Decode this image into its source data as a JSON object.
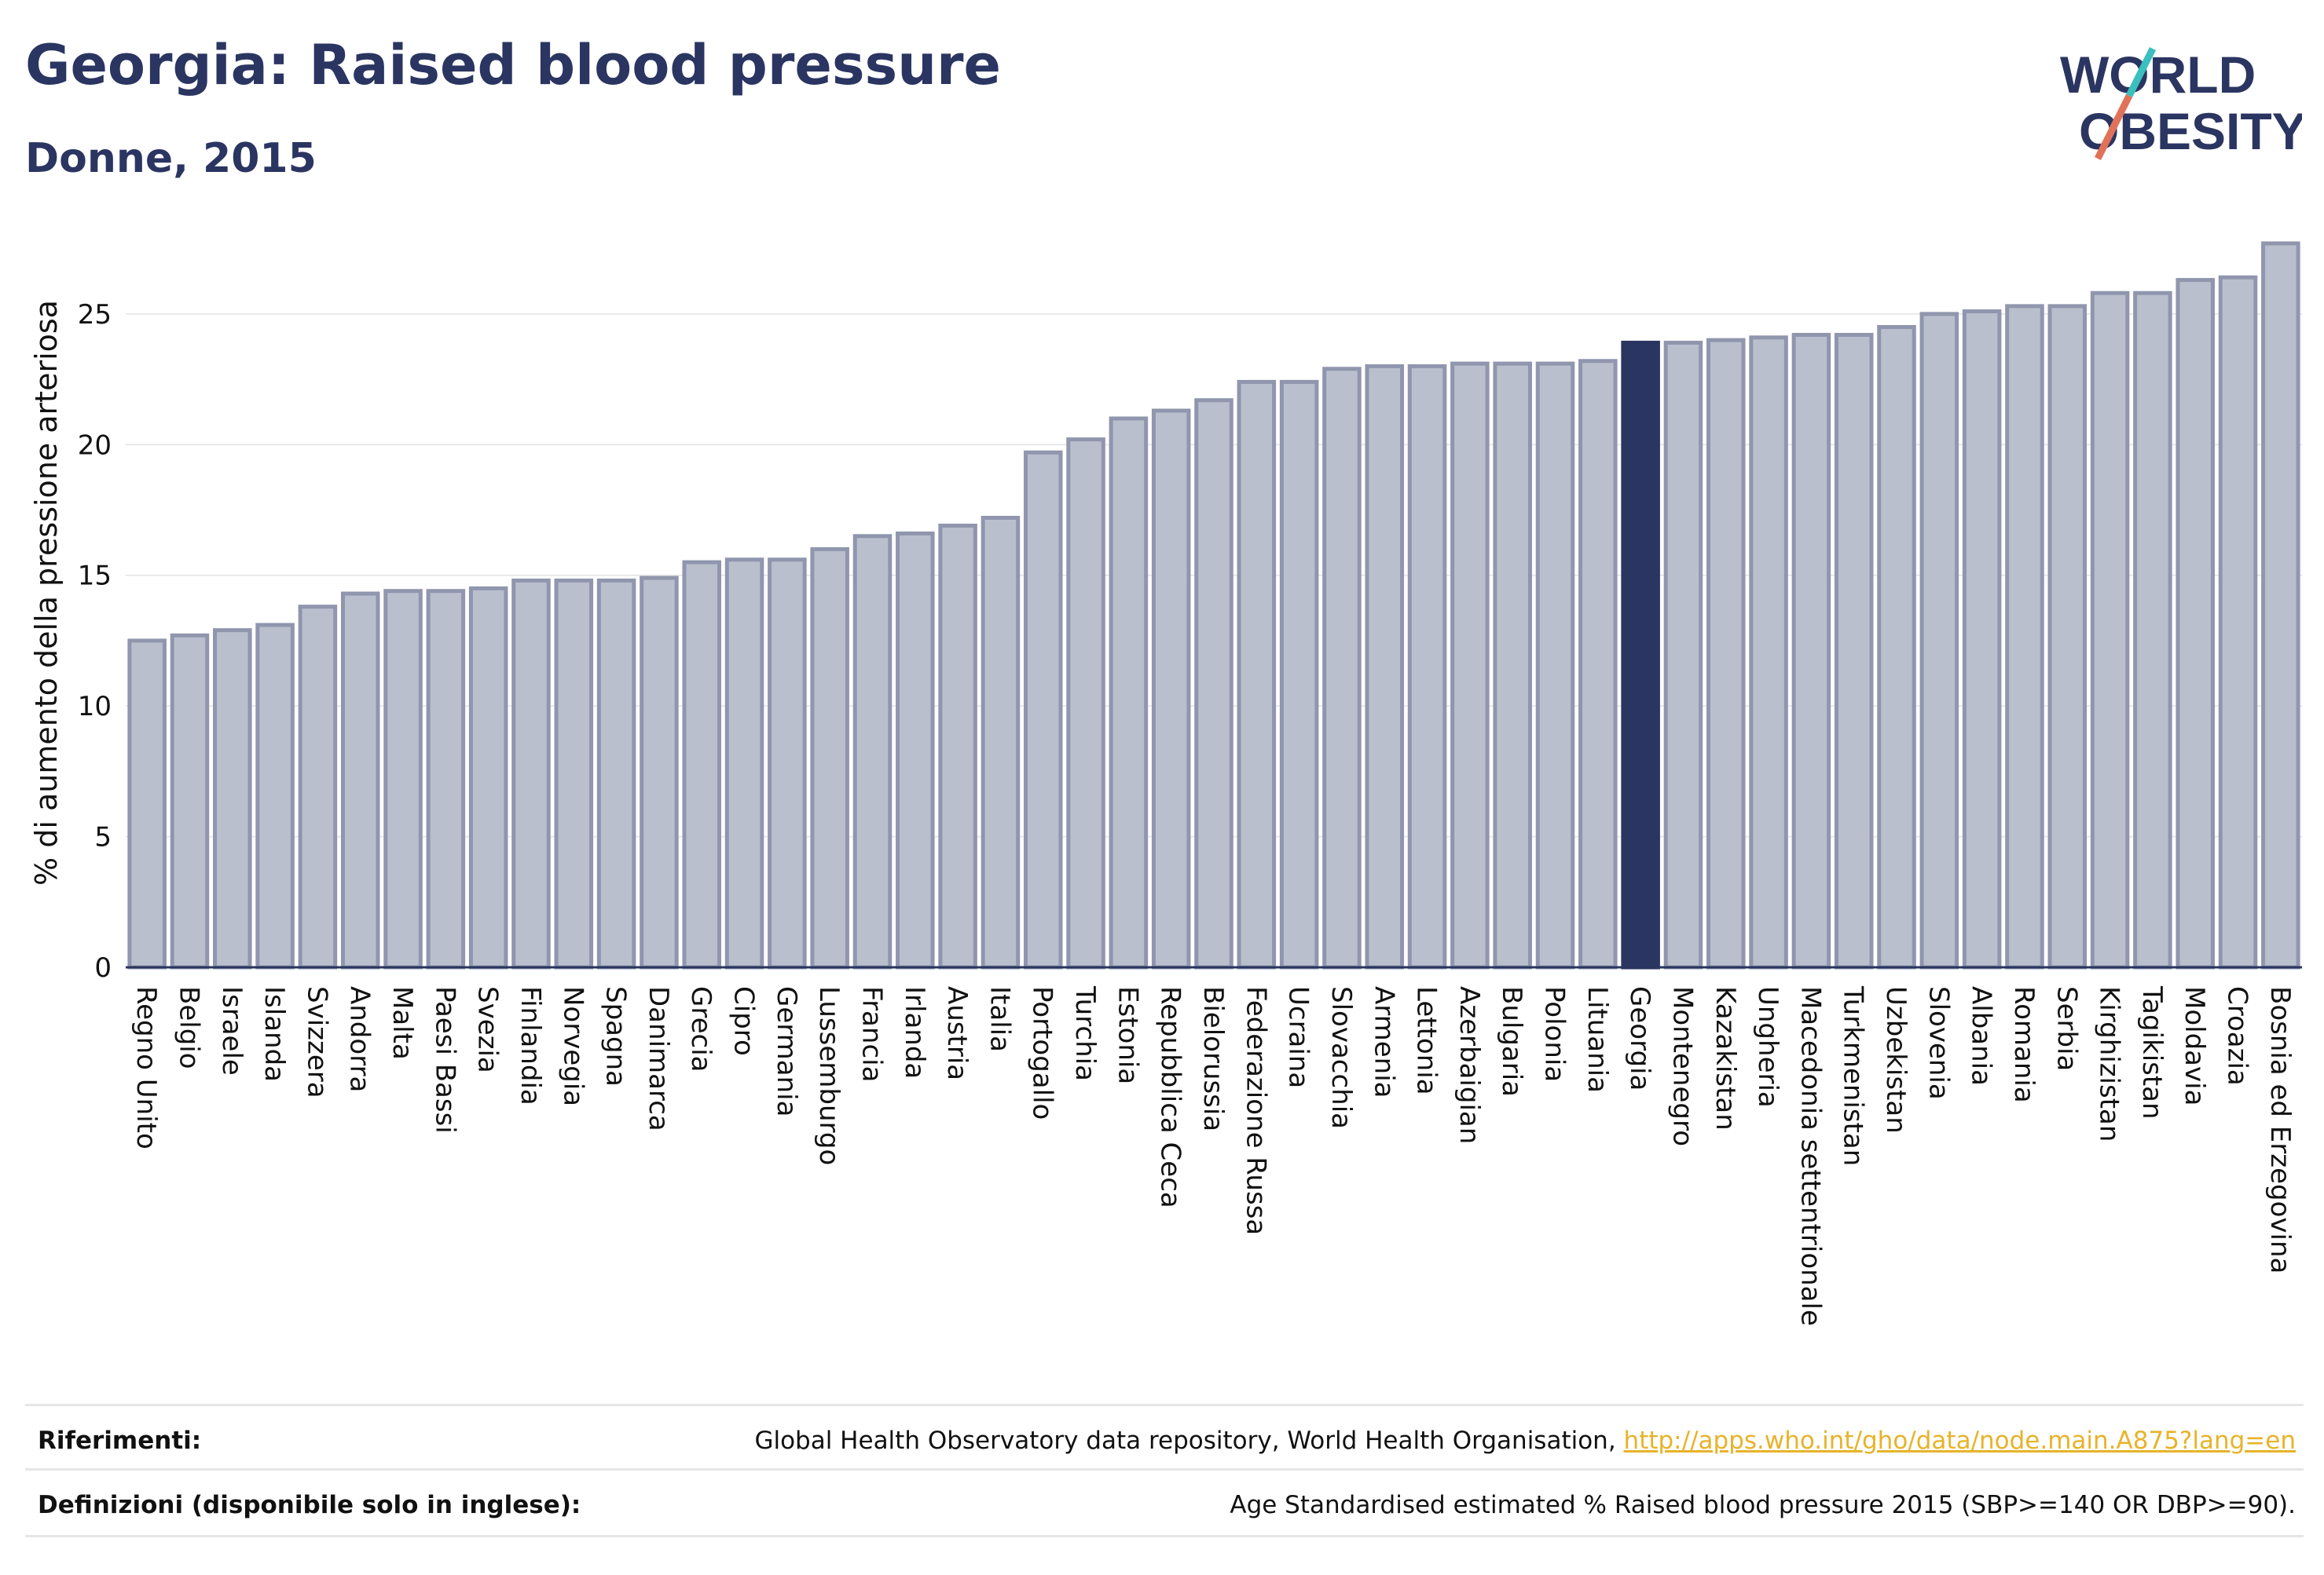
{
  "title": "Georgia: Raised blood pressure",
  "subtitle": "Donne, 2015",
  "logo": {
    "line1": "W",
    "line1b": "RLD",
    "line2": "BESITY"
  },
  "colors": {
    "bar": "#b9bfcd",
    "bar_edge": "#8f96ad",
    "highlight": "#2b3561",
    "text": "#2b3561",
    "link": "#e8b32a"
  },
  "chart_data": {
    "type": "bar",
    "ylabel": "% di aumento della pressione arteriosa",
    "ylim": [
      0,
      28
    ],
    "yticks": [
      0,
      5,
      10,
      15,
      20,
      25
    ],
    "grid": true,
    "highlight": "Georgia",
    "categories": [
      "Regno Unito",
      "Belgio",
      "Israele",
      "Islanda",
      "Svizzera",
      "Andorra",
      "Malta",
      "Paesi Bassi",
      "Svezia",
      "Finlandia",
      "Norvegia",
      "Spagna",
      "Danimarca",
      "Grecia",
      "Cipro",
      "Germania",
      "Lussemburgo",
      "Francia",
      "Irlanda",
      "Austria",
      "Italia",
      "Portogallo",
      "Turchia",
      "Estonia",
      "Repubblica Ceca",
      "Bielorussia",
      "Federazione Russa",
      "Ucraina",
      "Slovacchia",
      "Armenia",
      "Lettonia",
      "Azerbaigian",
      "Bulgaria",
      "Polonia",
      "Lituania",
      "Georgia",
      "Montenegro",
      "Kazakistan",
      "Ungheria",
      "Macedonia settentrionale",
      "Turkmenistan",
      "Uzbekistan",
      "Slovenia",
      "Albania",
      "Romania",
      "Serbia",
      "Kirghizistan",
      "Tagikistan",
      "Moldavia",
      "Croazia",
      "Bosnia ed Erzegovina"
    ],
    "values": [
      12.5,
      12.7,
      12.9,
      13.1,
      13.8,
      14.3,
      14.4,
      14.4,
      14.5,
      14.8,
      14.8,
      14.8,
      14.9,
      15.5,
      15.6,
      15.6,
      16.0,
      16.5,
      16.6,
      16.9,
      17.2,
      19.7,
      20.2,
      21.0,
      21.3,
      21.7,
      22.4,
      22.4,
      22.9,
      23.0,
      23.0,
      23.1,
      23.1,
      23.1,
      23.2,
      23.9,
      23.9,
      24.0,
      24.1,
      24.2,
      24.2,
      24.5,
      25.0,
      25.1,
      25.3,
      25.3,
      25.8,
      25.8,
      26.3,
      26.4,
      27.7
    ]
  },
  "footer": {
    "references_label": "Riferimenti:",
    "references_text": "Global Health Observatory data repository, World Health Organisation, ",
    "references_link": "http://apps.who.int/gho/data/node.main.A875?lang=en",
    "definitions_label": "Definizioni (disponibile solo in inglese):",
    "definitions_text": "Age Standardised estimated % Raised blood pressure 2015 (SBP>=140 OR DBP>=90)."
  }
}
